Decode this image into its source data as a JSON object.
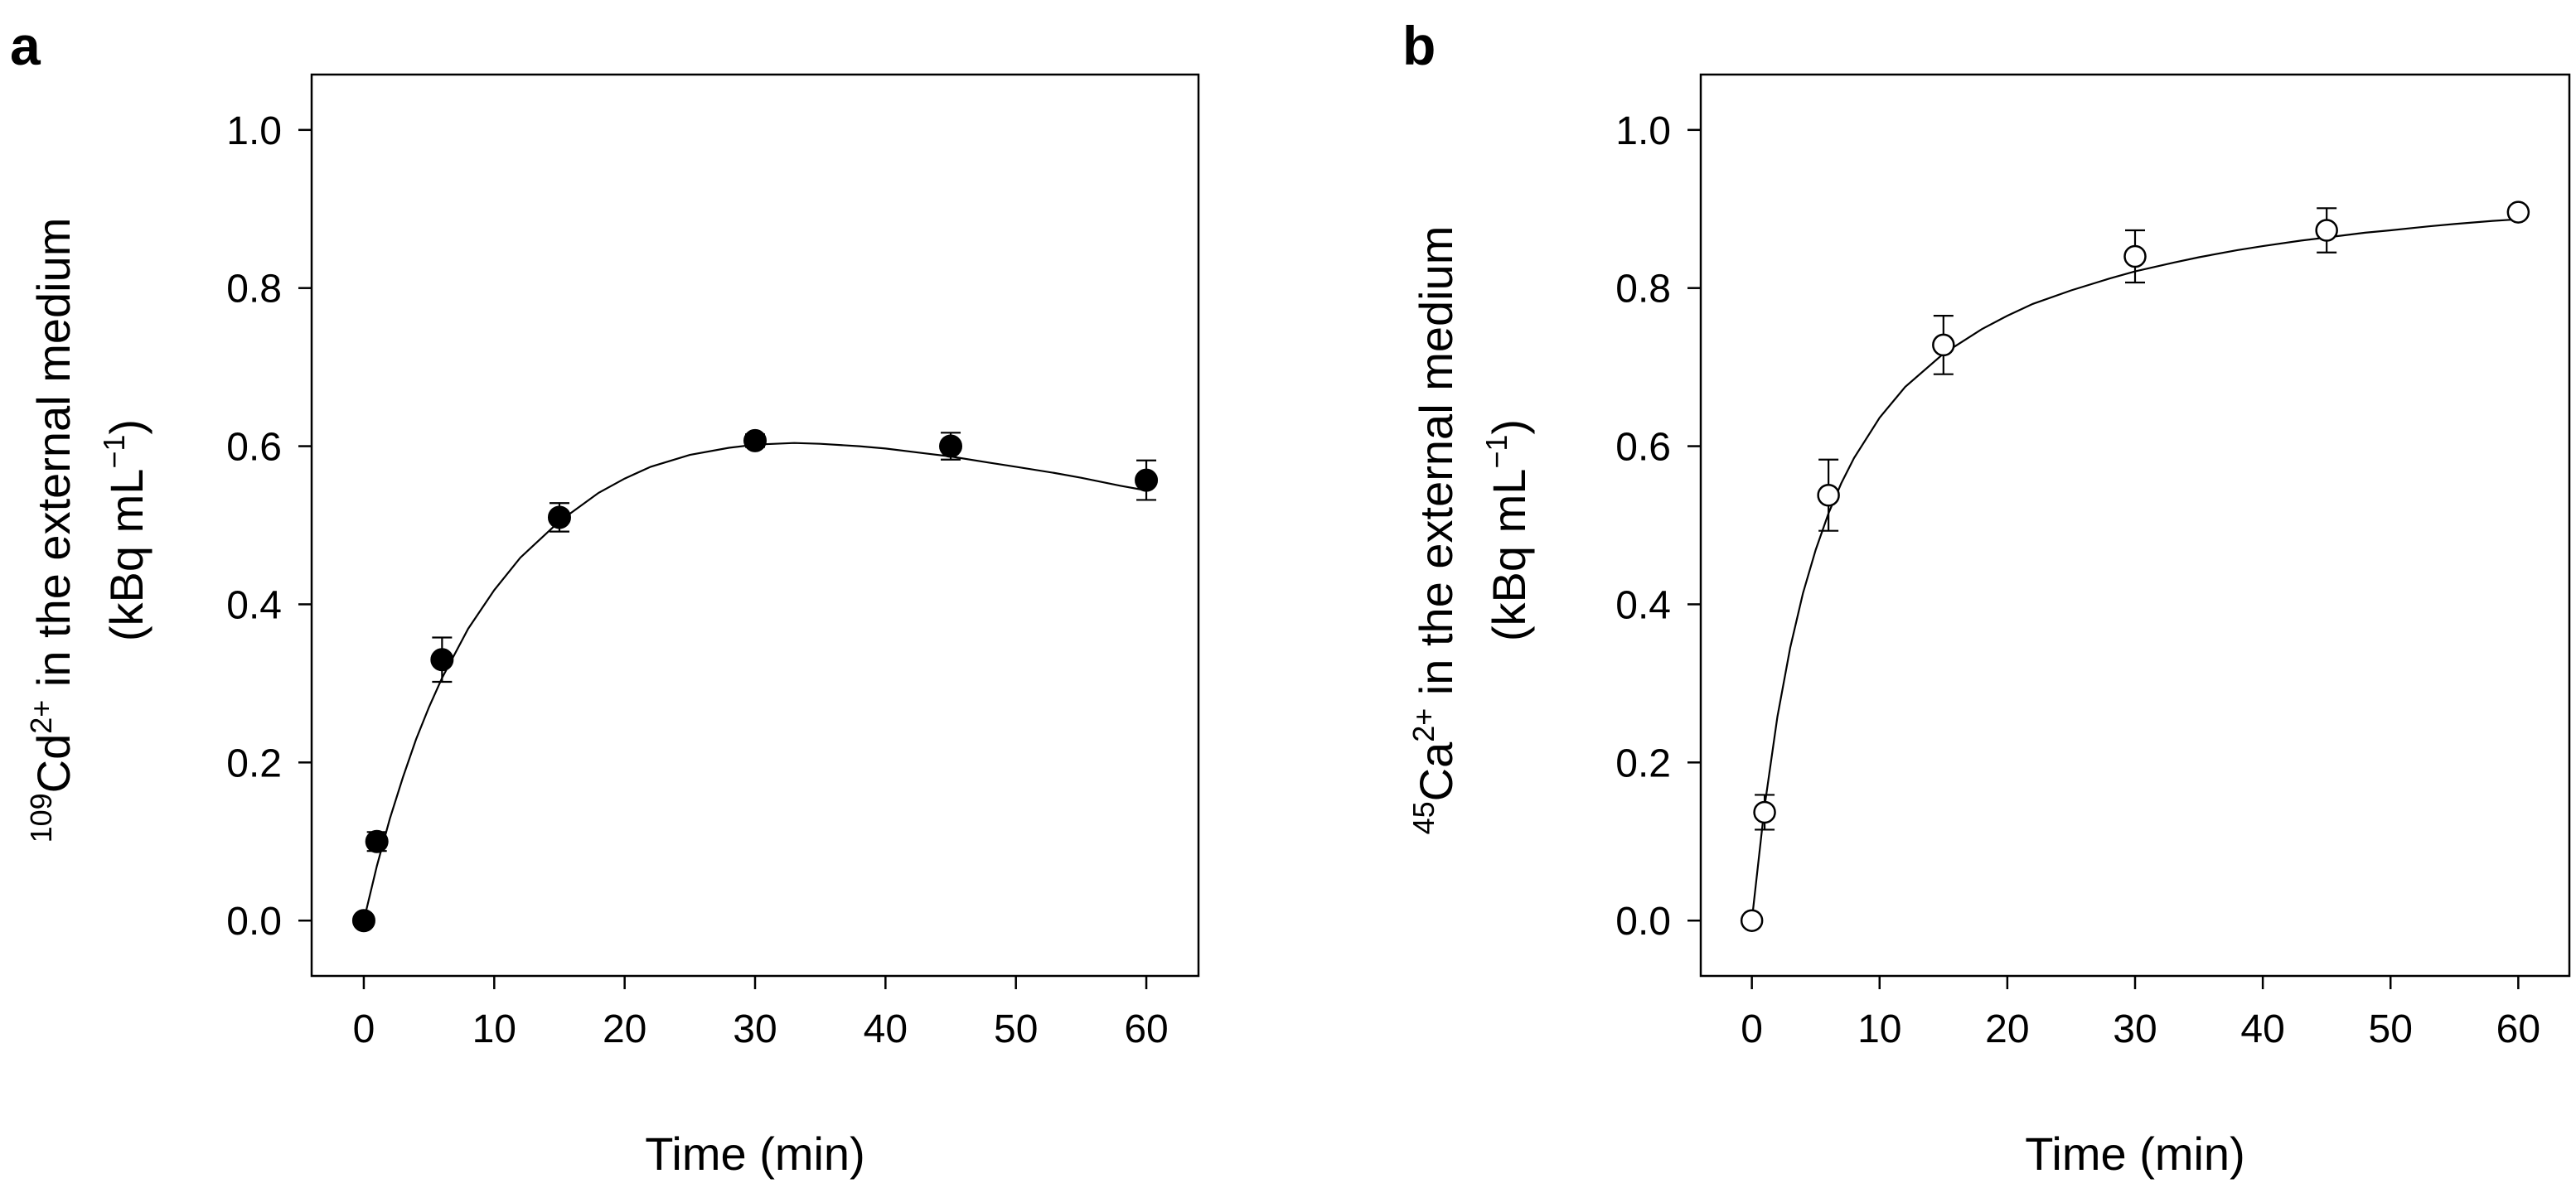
{
  "chart_data": [
    {
      "panel_label": "a",
      "type": "scatter",
      "marker": "filled-circle",
      "marker_color": "#000000",
      "xlabel": "Time (min)",
      "ylabel": {
        "isotope_mass": "109",
        "element": "Cd",
        "charge": "2+",
        "rest": " in the external medium",
        "unit_open": "(kBq mL",
        "unit_exp": "−1",
        "unit_close": ")"
      },
      "xlim": [
        -4,
        64
      ],
      "ylim": [
        -0.07,
        1.07
      ],
      "xticks": [
        0,
        10,
        20,
        30,
        40,
        50,
        60
      ],
      "yticks": [
        0.0,
        0.2,
        0.4,
        0.6,
        0.8,
        1.0
      ],
      "xtick_labels": [
        "0",
        "10",
        "20",
        "30",
        "40",
        "50",
        "60"
      ],
      "ytick_labels": [
        "0.0",
        "0.2",
        "0.4",
        "0.6",
        "0.8",
        "1.0"
      ],
      "grid": false,
      "x": [
        0,
        1,
        6,
        15,
        30,
        45,
        60
      ],
      "y": [
        0.0,
        0.1,
        0.33,
        0.51,
        0.607,
        0.6,
        0.557
      ],
      "yerr": [
        0.0,
        0.012,
        0.028,
        0.018,
        0.008,
        0.017,
        0.025
      ],
      "fit_curve": {
        "x": [
          0,
          1,
          2,
          3,
          4,
          5,
          6,
          8,
          10,
          12,
          15,
          18,
          20,
          22,
          25,
          28,
          30,
          33,
          35,
          38,
          40,
          43,
          45,
          48,
          50,
          53,
          55,
          58,
          60
        ],
        "y": [
          0.0,
          0.069,
          0.129,
          0.181,
          0.229,
          0.27,
          0.307,
          0.369,
          0.418,
          0.459,
          0.505,
          0.541,
          0.559,
          0.574,
          0.589,
          0.598,
          0.602,
          0.604,
          0.603,
          0.6,
          0.597,
          0.591,
          0.587,
          0.579,
          0.574,
          0.566,
          0.56,
          0.55,
          0.544
        ]
      }
    },
    {
      "panel_label": "b",
      "type": "scatter",
      "marker": "open-circle",
      "marker_color": "#000000",
      "xlabel": "Time (min)",
      "ylabel": {
        "isotope_mass": "45",
        "element": "Ca",
        "charge": "2+",
        "rest": " in the external medium",
        "unit_open": "(kBq mL",
        "unit_exp": "−1",
        "unit_close": ")"
      },
      "xlim": [
        -4,
        64
      ],
      "ylim": [
        -0.07,
        1.07
      ],
      "xticks": [
        0,
        10,
        20,
        30,
        40,
        50,
        60
      ],
      "yticks": [
        0.0,
        0.2,
        0.4,
        0.6,
        0.8,
        1.0
      ],
      "xtick_labels": [
        "0",
        "10",
        "20",
        "30",
        "40",
        "50",
        "60"
      ],
      "ytick_labels": [
        "0.0",
        "0.2",
        "0.4",
        "0.6",
        "0.8",
        "1.0"
      ],
      "grid": false,
      "x": [
        0,
        1,
        6,
        15,
        30,
        45,
        60
      ],
      "y": [
        0.0,
        0.137,
        0.538,
        0.728,
        0.84,
        0.873,
        0.896
      ],
      "yerr": [
        0.0,
        0.022,
        0.045,
        0.037,
        0.033,
        0.028,
        0.006
      ],
      "fit_curve": {
        "x": [
          0,
          1,
          2,
          3,
          4,
          5,
          6,
          7,
          8,
          10,
          12,
          15,
          18,
          20,
          22,
          25,
          28,
          30,
          33,
          35,
          38,
          40,
          43,
          45,
          48,
          50,
          53,
          55,
          58,
          60
        ],
        "y": [
          0.0,
          0.145,
          0.258,
          0.345,
          0.414,
          0.469,
          0.515,
          0.553,
          0.585,
          0.636,
          0.675,
          0.717,
          0.748,
          0.765,
          0.78,
          0.797,
          0.812,
          0.821,
          0.832,
          0.839,
          0.848,
          0.853,
          0.86,
          0.864,
          0.87,
          0.873,
          0.878,
          0.881,
          0.885,
          0.887
        ]
      }
    }
  ]
}
